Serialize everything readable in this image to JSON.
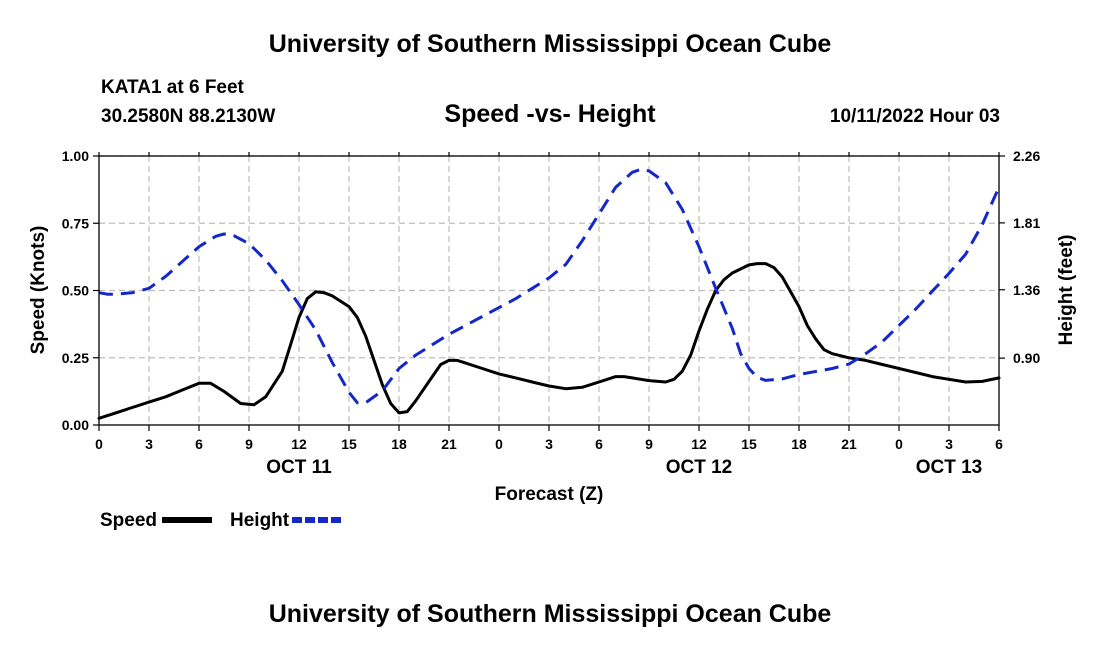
{
  "header": {
    "main_title": "University of Southern Mississippi Ocean Cube",
    "station": "KATA1 at 6 Feet",
    "coordinates": "30.2580N  88.2130W",
    "runtime": "10/11/2022 Hour 03",
    "footer_title": "University of Southern Mississippi Ocean Cube"
  },
  "chart_data": {
    "type": "line",
    "title": "Speed -vs- Height",
    "xlabel": "Forecast (Z)",
    "ylabel_left": "Speed (Knots)",
    "ylabel_right": "Height (feet)",
    "x_hours": [
      0,
      54
    ],
    "x_tick_labels": [
      "0",
      "3",
      "6",
      "9",
      "12",
      "15",
      "18",
      "21",
      "0",
      "3",
      "6",
      "9",
      "12",
      "15",
      "18",
      "21",
      "0",
      "3",
      "6"
    ],
    "x_tick_step_hours": 3,
    "date_labels": [
      {
        "label": "OCT 11",
        "hour": 12
      },
      {
        "label": "OCT 12",
        "hour": 36
      },
      {
        "label": "OCT 13",
        "hour": 51
      }
    ],
    "ylim_left": [
      0,
      1
    ],
    "y_ticks_left": [
      0,
      0.25,
      0.5,
      0.75,
      1.0
    ],
    "y_tick_labels_left": [
      "0.00",
      "0.25",
      "0.50",
      "0.75",
      "1.00"
    ],
    "ylim_right": [
      0.45,
      2.26
    ],
    "y_ticks_right": [
      0.9,
      1.36,
      1.81,
      2.26
    ],
    "y_tick_labels_right": [
      "0.90",
      "1.36",
      "1.81",
      "2.26"
    ],
    "grid": true,
    "series": [
      {
        "name": "Speed",
        "axis": "left",
        "color": "#000000",
        "dash": "solid",
        "points": [
          [
            0,
            0.025
          ],
          [
            1,
            0.045
          ],
          [
            2,
            0.065
          ],
          [
            3,
            0.085
          ],
          [
            4,
            0.105
          ],
          [
            5,
            0.13
          ],
          [
            6,
            0.155
          ],
          [
            6.7,
            0.155
          ],
          [
            7.5,
            0.125
          ],
          [
            8.5,
            0.08
          ],
          [
            9.3,
            0.075
          ],
          [
            10,
            0.105
          ],
          [
            11,
            0.2
          ],
          [
            11.5,
            0.3
          ],
          [
            12,
            0.4
          ],
          [
            12.5,
            0.47
          ],
          [
            13,
            0.495
          ],
          [
            13.5,
            0.492
          ],
          [
            14,
            0.48
          ],
          [
            15,
            0.44
          ],
          [
            15.5,
            0.4
          ],
          [
            16,
            0.33
          ],
          [
            16.5,
            0.24
          ],
          [
            17,
            0.15
          ],
          [
            17.5,
            0.08
          ],
          [
            18,
            0.045
          ],
          [
            18.5,
            0.05
          ],
          [
            19,
            0.09
          ],
          [
            20,
            0.18
          ],
          [
            20.5,
            0.225
          ],
          [
            21,
            0.24
          ],
          [
            21.5,
            0.24
          ],
          [
            22,
            0.23
          ],
          [
            23,
            0.21
          ],
          [
            24,
            0.19
          ],
          [
            25,
            0.175
          ],
          [
            26,
            0.16
          ],
          [
            27,
            0.145
          ],
          [
            28,
            0.135
          ],
          [
            29,
            0.14
          ],
          [
            30,
            0.16
          ],
          [
            31,
            0.18
          ],
          [
            31.5,
            0.18
          ],
          [
            32,
            0.175
          ],
          [
            33,
            0.165
          ],
          [
            34,
            0.16
          ],
          [
            34.5,
            0.17
          ],
          [
            35,
            0.2
          ],
          [
            35.5,
            0.26
          ],
          [
            36,
            0.35
          ],
          [
            36.5,
            0.43
          ],
          [
            37,
            0.5
          ],
          [
            37.5,
            0.54
          ],
          [
            38,
            0.565
          ],
          [
            39,
            0.595
          ],
          [
            39.5,
            0.6
          ],
          [
            40,
            0.6
          ],
          [
            40.5,
            0.585
          ],
          [
            41,
            0.55
          ],
          [
            42,
            0.44
          ],
          [
            42.5,
            0.37
          ],
          [
            43,
            0.32
          ],
          [
            43.5,
            0.28
          ],
          [
            44,
            0.265
          ],
          [
            45,
            0.25
          ],
          [
            46,
            0.24
          ],
          [
            47,
            0.225
          ],
          [
            48,
            0.21
          ],
          [
            49,
            0.195
          ],
          [
            50,
            0.18
          ],
          [
            51,
            0.17
          ],
          [
            52,
            0.16
          ],
          [
            53,
            0.162
          ],
          [
            54,
            0.175
          ]
        ]
      },
      {
        "name": "Height",
        "axis": "right",
        "color": "#1428c8",
        "dash": "dashed",
        "points": [
          [
            0,
            1.34
          ],
          [
            0.5,
            1.33
          ],
          [
            1,
            1.33
          ],
          [
            2,
            1.34
          ],
          [
            3,
            1.37
          ],
          [
            4,
            1.45
          ],
          [
            5,
            1.55
          ],
          [
            6,
            1.65
          ],
          [
            7,
            1.72
          ],
          [
            7.5,
            1.735
          ],
          [
            8,
            1.73
          ],
          [
            9,
            1.67
          ],
          [
            10,
            1.56
          ],
          [
            11,
            1.42
          ],
          [
            12,
            1.26
          ],
          [
            13,
            1.09
          ],
          [
            14,
            0.87
          ],
          [
            15,
            0.67
          ],
          [
            15.5,
            0.6
          ],
          [
            16,
            0.6
          ],
          [
            17,
            0.68
          ],
          [
            18,
            0.83
          ],
          [
            19,
            0.92
          ],
          [
            20,
            0.99
          ],
          [
            21,
            1.06
          ],
          [
            22,
            1.12
          ],
          [
            23,
            1.18
          ],
          [
            24,
            1.24
          ],
          [
            25,
            1.3
          ],
          [
            26,
            1.37
          ],
          [
            27,
            1.44
          ],
          [
            28,
            1.53
          ],
          [
            29,
            1.69
          ],
          [
            30,
            1.87
          ],
          [
            31,
            2.05
          ],
          [
            32,
            2.15
          ],
          [
            32.5,
            2.17
          ],
          [
            33,
            2.16
          ],
          [
            34,
            2.08
          ],
          [
            35,
            1.9
          ],
          [
            36,
            1.65
          ],
          [
            37,
            1.37
          ],
          [
            38,
            1.1
          ],
          [
            38.5,
            0.93
          ],
          [
            39,
            0.83
          ],
          [
            39.5,
            0.77
          ],
          [
            40,
            0.75
          ],
          [
            41,
            0.76
          ],
          [
            42,
            0.79
          ],
          [
            43,
            0.81
          ],
          [
            44,
            0.83
          ],
          [
            45,
            0.86
          ],
          [
            46,
            0.93
          ],
          [
            47,
            1.01
          ],
          [
            48,
            1.12
          ],
          [
            49,
            1.23
          ],
          [
            50,
            1.35
          ],
          [
            51,
            1.47
          ],
          [
            52,
            1.6
          ],
          [
            53,
            1.8
          ],
          [
            54,
            2.05
          ]
        ]
      }
    ]
  }
}
